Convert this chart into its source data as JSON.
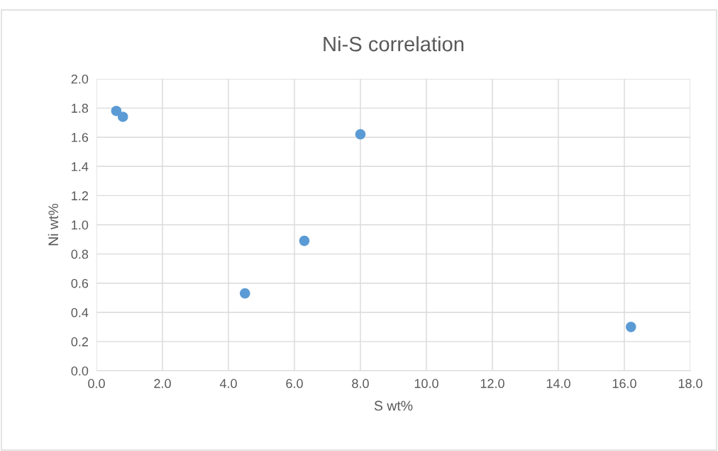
{
  "chart_data": {
    "type": "scatter",
    "title": "Ni-S correlation",
    "xlabel": "S wt%",
    "ylabel": "Ni wt%",
    "x": [
      0.6,
      0.8,
      4.5,
      6.3,
      8.0,
      16.2
    ],
    "series": [
      {
        "color": "#5b9bd5",
        "values": [
          1.78,
          1.74,
          0.53,
          0.89,
          1.62,
          0.3
        ]
      }
    ],
    "xlim": [
      0,
      18
    ],
    "xticks": [
      {
        "value": 0,
        "label": "0.0"
      },
      {
        "value": 2,
        "label": "2.0"
      },
      {
        "value": 4,
        "label": "4.0"
      },
      {
        "value": 6,
        "label": "6.0"
      },
      {
        "value": 8,
        "label": "8.0"
      },
      {
        "value": 10,
        "label": "10.0"
      },
      {
        "value": 12,
        "label": "12.0"
      },
      {
        "value": 14,
        "label": "14.0"
      },
      {
        "value": 16,
        "label": "16.0"
      },
      {
        "value": 18,
        "label": "18.0"
      }
    ],
    "ylim": [
      0,
      2
    ],
    "yticks": [
      {
        "value": 0,
        "label": "0.0"
      },
      {
        "value": 0.2,
        "label": "0.2"
      },
      {
        "value": 0.4,
        "label": "0.4"
      },
      {
        "value": 0.6,
        "label": "0.6"
      },
      {
        "value": 0.8,
        "label": "0.8"
      },
      {
        "value": 1.0,
        "label": "1.0"
      },
      {
        "value": 1.2,
        "label": "1.2"
      },
      {
        "value": 1.4,
        "label": "1.4"
      },
      {
        "value": 1.6,
        "label": "1.6"
      },
      {
        "value": 1.8,
        "label": "1.8"
      },
      {
        "value": 2.0,
        "label": "2.0"
      }
    ],
    "grid": true,
    "marker": "circle"
  }
}
